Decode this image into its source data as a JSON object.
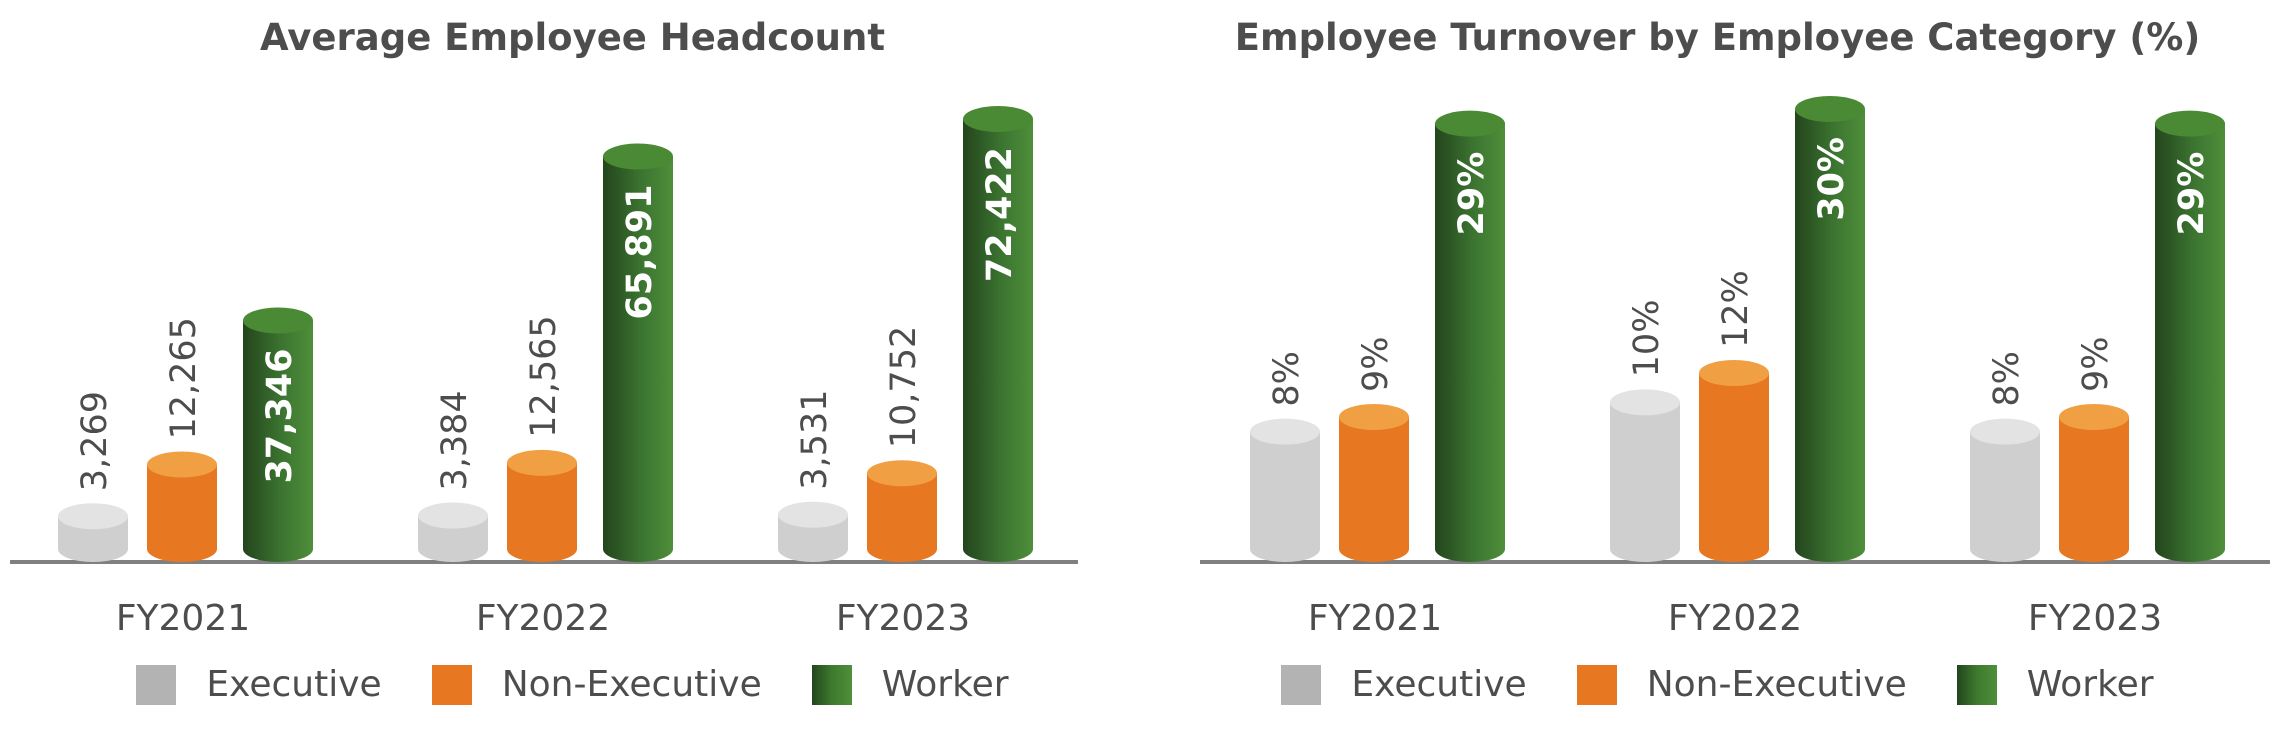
{
  "chart_data": [
    {
      "type": "bar",
      "title": "Average Employee Headcount",
      "categories": [
        "FY2021",
        "FY2022",
        "FY2023"
      ],
      "series": [
        {
          "name": "Executive",
          "values": [
            3269,
            3384,
            3531
          ],
          "labels": [
            "3,269",
            "3,384",
            "3,531"
          ]
        },
        {
          "name": "Non-Executive",
          "values": [
            12265,
            12565,
            10752
          ],
          "labels": [
            "12,265",
            "12,565",
            "10,752"
          ]
        },
        {
          "name": "Worker",
          "values": [
            37346,
            65891,
            72422
          ],
          "labels": [
            "37,346",
            "65,891",
            "72,422"
          ]
        }
      ],
      "ylim": [
        0,
        72422
      ],
      "grid": false,
      "legend": "bottom",
      "colors": {
        "Executive": "#b3b3b3",
        "Non-Executive": "#e87722",
        "Worker": "#3e7a2e"
      }
    },
    {
      "type": "bar",
      "title": "Employee Turnover by Employee Category (%)",
      "categories": [
        "FY2021",
        "FY2022",
        "FY2023"
      ],
      "series": [
        {
          "name": "Executive",
          "values": [
            8,
            10,
            8
          ],
          "labels": [
            "8%",
            "10%",
            "8%"
          ]
        },
        {
          "name": "Non-Executive",
          "values": [
            9,
            12,
            9
          ],
          "labels": [
            "9%",
            "12%",
            "9%"
          ]
        },
        {
          "name": "Worker",
          "values": [
            29,
            30,
            29
          ],
          "labels": [
            "29%",
            "30%",
            "29%"
          ]
        }
      ],
      "ylim": [
        0,
        30
      ],
      "grid": false,
      "legend": "bottom",
      "colors": {
        "Executive": "#b3b3b3",
        "Non-Executive": "#e87722",
        "Worker": "#3e7a2e"
      }
    }
  ]
}
